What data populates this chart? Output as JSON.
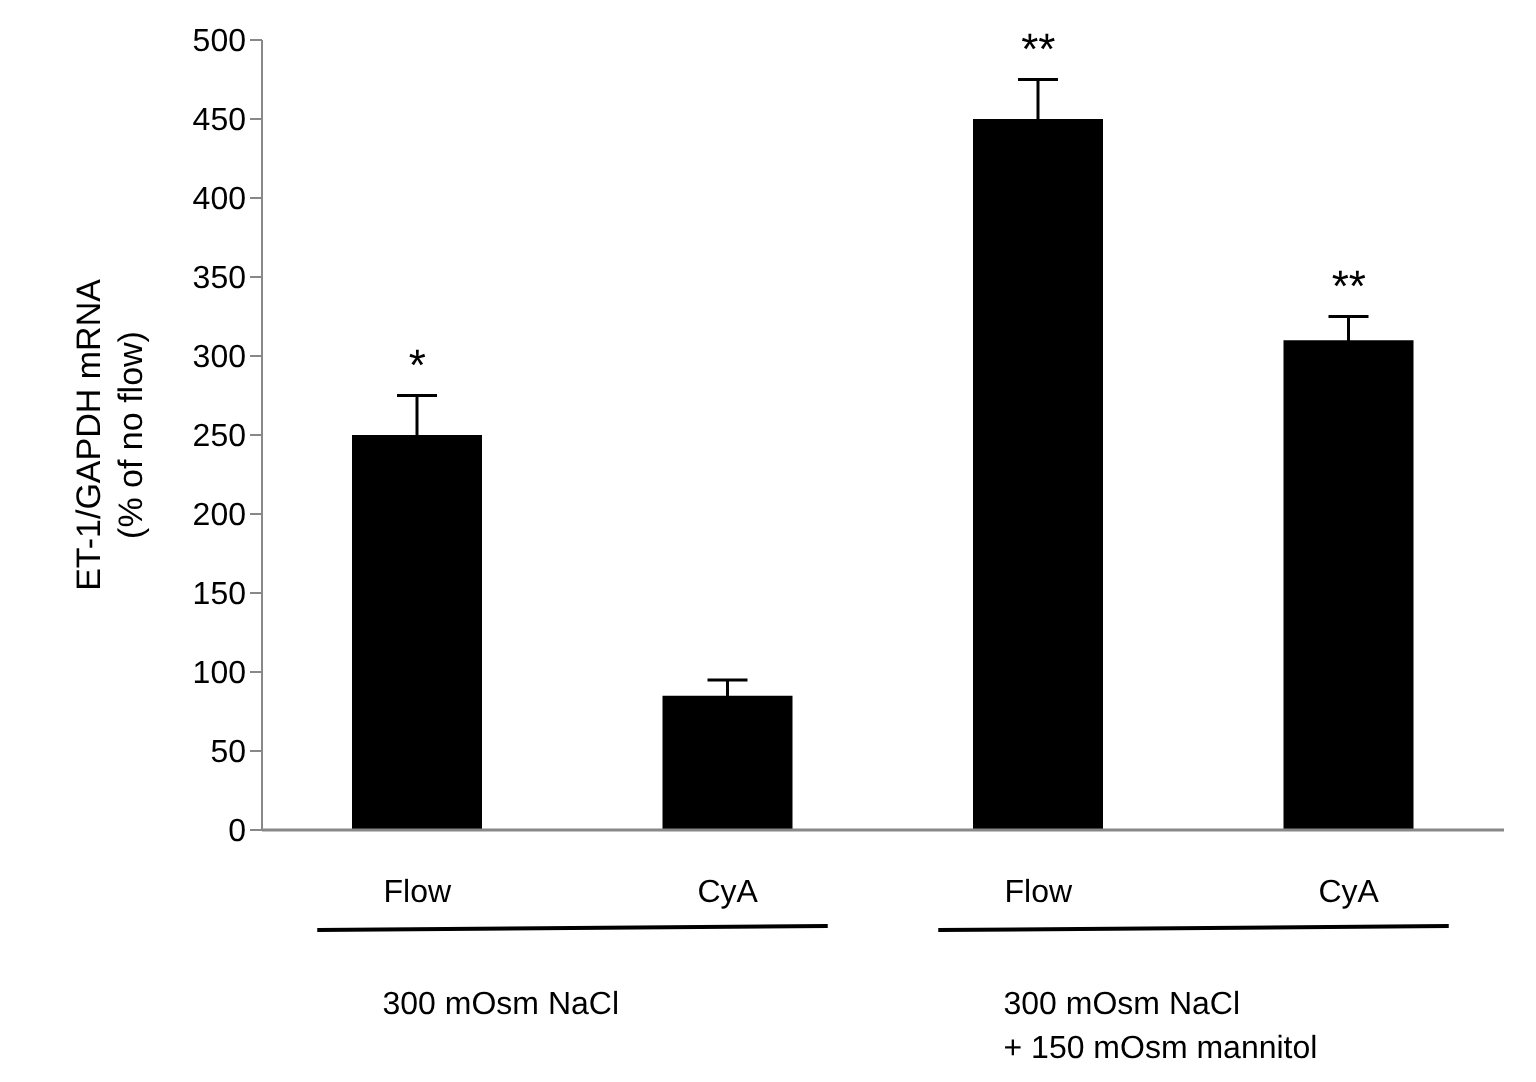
{
  "chart_data": {
    "type": "bar",
    "ylabel": "ET-1/GAPDH mRNA\n(% of no flow)",
    "categories": [
      "Flow",
      "CyA",
      "Flow",
      "CyA"
    ],
    "values": [
      250,
      85,
      450,
      310
    ],
    "errors": [
      25,
      10,
      25,
      15
    ],
    "color": "#000000",
    "ylim": [
      0,
      500
    ],
    "yticks": [
      0,
      50,
      100,
      150,
      200,
      250,
      300,
      350,
      400,
      450,
      500
    ],
    "grid": false,
    "legend": false,
    "value_labels": [
      "*",
      null,
      "**",
      "**"
    ],
    "annotations": [
      "300 mOsm NaCl",
      "300 mOsm NaCl\n+ 150 mOsm mannitol"
    ]
  }
}
